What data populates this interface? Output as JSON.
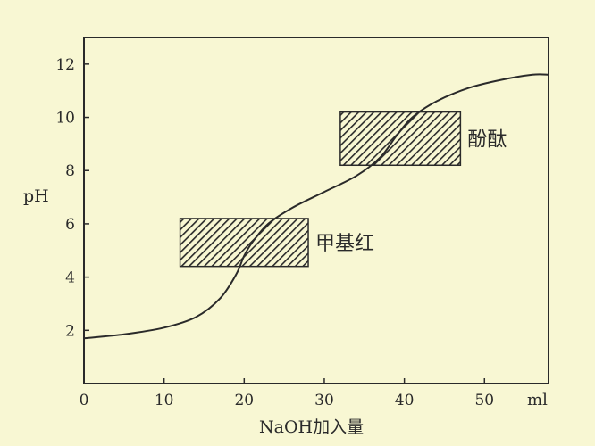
{
  "chart_data": {
    "type": "line",
    "title": "",
    "xlabel": "NaOH加入量",
    "ylabel": "pH",
    "x_unit": "ml",
    "xlim": [
      0,
      58
    ],
    "ylim": [
      0,
      13
    ],
    "x_ticks": [
      0,
      10,
      20,
      30,
      40,
      50
    ],
    "x_tick_labels": [
      "0",
      "10",
      "20",
      "30",
      "40",
      "50"
    ],
    "y_ticks": [
      2,
      4,
      6,
      8,
      10,
      12
    ],
    "y_tick_labels": [
      "2",
      "4",
      "6",
      "8",
      "10",
      "12"
    ],
    "grid": false,
    "series": [
      {
        "x": [
          0,
          5,
          10,
          14,
          17,
          19,
          20,
          21,
          23,
          26,
          30,
          34,
          37,
          39,
          41,
          44,
          48,
          52,
          56,
          58
        ],
        "y": [
          1.7,
          1.85,
          2.1,
          2.5,
          3.2,
          4.1,
          4.8,
          5.3,
          6.0,
          6.6,
          7.2,
          7.8,
          8.5,
          9.3,
          10.0,
          10.6,
          11.1,
          11.4,
          11.6,
          11.6
        ]
      }
    ],
    "annotations": [
      {
        "label": "甲基红",
        "x_range": [
          12,
          28
        ],
        "y_range": [
          4.4,
          6.2
        ]
      },
      {
        "label": "酚酞",
        "x_range": [
          32,
          47
        ],
        "y_range": [
          8.2,
          10.2
        ]
      }
    ]
  },
  "colors": {
    "background": "#f8f7d3",
    "ink": "#2a2a2a"
  }
}
